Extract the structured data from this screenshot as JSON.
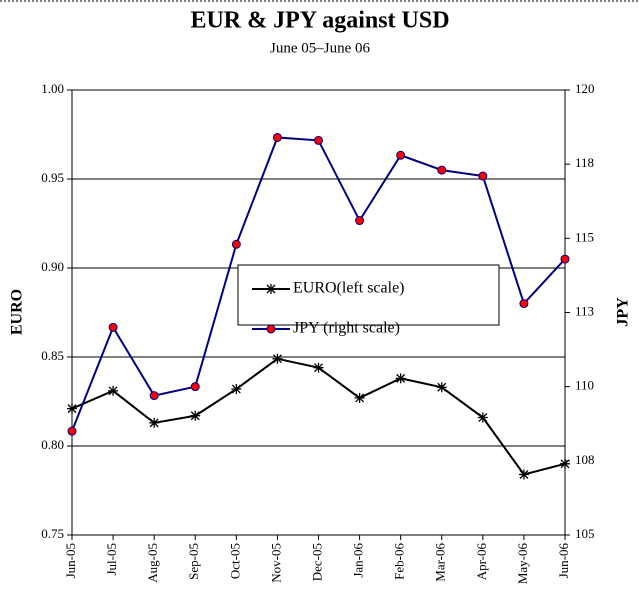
{
  "chart_data": {
    "type": "line",
    "title": "EUR & JPY against USD",
    "subtitle": "June  05–June  06",
    "y_label": "EURO",
    "y2_label": "JPY",
    "categories": [
      "Jun-05",
      "Jul-05",
      "Aug-05",
      "Sep-05",
      "Oct-05",
      "Nov-05",
      "Dec-05",
      "Jan-06",
      "Feb-06",
      "Mar-06",
      "Apr-06",
      "May-06",
      "Jun-06"
    ],
    "series": [
      {
        "name": "EURO(left scale)",
        "color": "#000000",
        "marker": "asterisk",
        "values": [
          0.821,
          0.831,
          0.813,
          0.817,
          0.832,
          0.849,
          0.844,
          0.827,
          0.838,
          0.833,
          0.816,
          0.784,
          0.79
        ]
      },
      {
        "name": "JPY (right scale)",
        "color": "#000080",
        "marker_color": "#ff0000",
        "marker": "circle",
        "axis": "y2",
        "values": [
          108.5,
          112.0,
          109.7,
          110.0,
          114.8,
          118.4,
          118.3,
          115.6,
          117.8,
          117.3,
          117.1,
          112.8,
          114.3
        ]
      }
    ],
    "ylim": [
      0.75,
      1
    ],
    "yticks": [
      0.75,
      {
        "value": 0.8,
        "label": "0.80"
      },
      0.85,
      {
        "value": 0.9,
        "label": "0.90"
      },
      0.95,
      {
        "value": 1,
        "label": "1.00"
      }
    ],
    "y2lim": [
      105,
      120
    ],
    "y2ticks": [
      105,
      {
        "value": 107.5,
        "label": "108"
      },
      110,
      {
        "value": 112.5,
        "label": "113"
      },
      115,
      {
        "value": 117.5,
        "label": "118"
      },
      120
    ],
    "grid": true
  }
}
